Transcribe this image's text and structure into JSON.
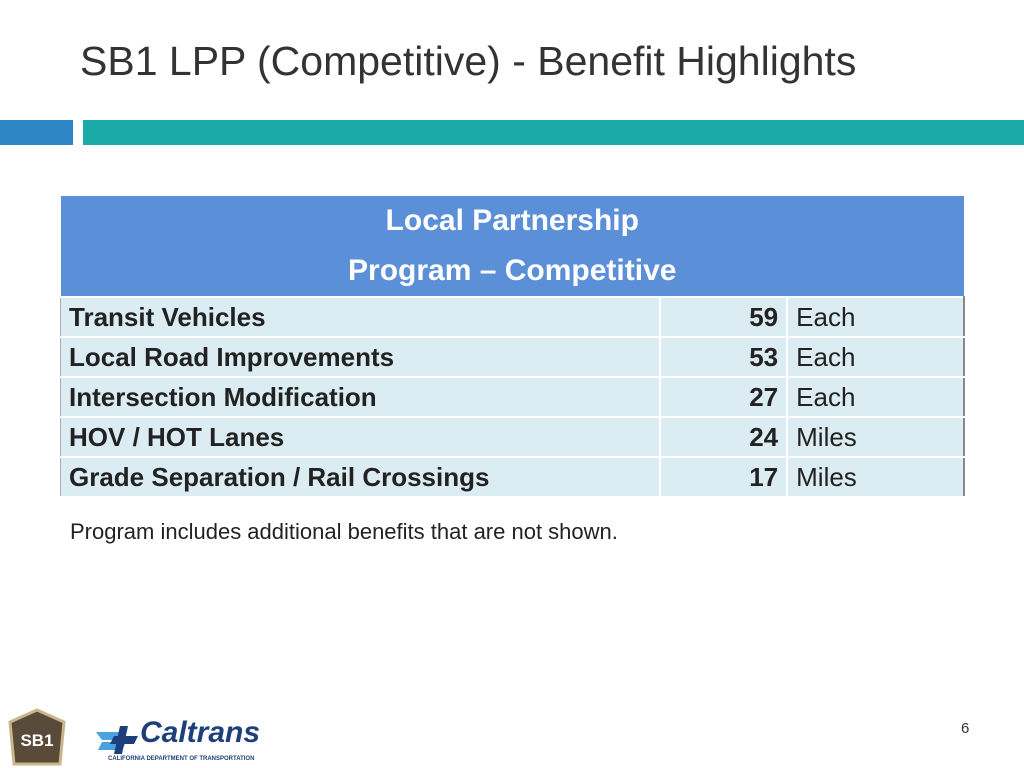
{
  "title": "SB1 LPP (Competitive) - Benefit Highlights",
  "table": {
    "header": [
      "Local Partnership",
      "Program – Competitive"
    ],
    "rows": [
      [
        "Transit Vehicles",
        59,
        "Each"
      ],
      [
        "Local Road Improvements",
        53,
        "Each"
      ],
      [
        "Intersection Modification",
        27,
        "Each"
      ],
      [
        "HOV / HOT Lanes",
        24,
        "Miles"
      ],
      [
        "Grade Separation / Rail Crossings",
        17,
        "Miles"
      ]
    ]
  },
  "footnote": "Program includes additional benefits that are not shown.",
  "logos": {
    "sb1": "SB1",
    "caltrans": "Caltrans",
    "caltrans_sub": "CALIFORNIA DEPARTMENT OF TRANSPORTATION"
  },
  "page_number": 6
}
